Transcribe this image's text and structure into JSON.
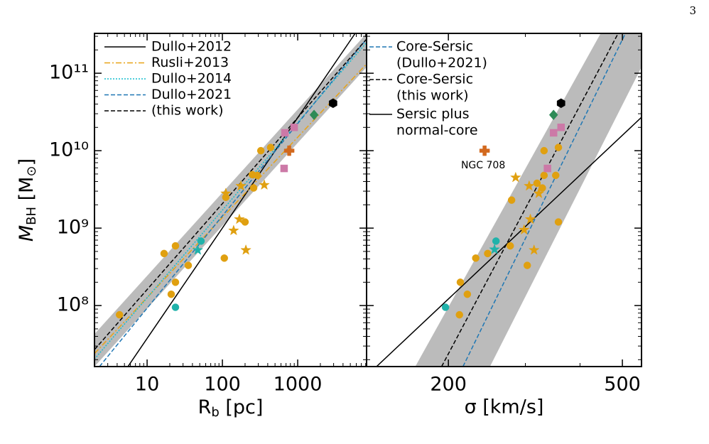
{
  "page_number": "3",
  "chart_data": [
    {
      "type": "scatter",
      "xscale": "log",
      "yscale": "log",
      "xlabel": [
        "R",
        "b",
        " [pc]"
      ],
      "ylabel": [
        "M",
        "BH",
        " [M",
        "⊙",
        "]"
      ],
      "xlim": [
        2,
        8220
      ],
      "ylim": [
        16300000,
        327000000000
      ],
      "xticks": [
        10,
        100,
        1000
      ],
      "yticks": [
        {
          "value": 100000000,
          "label": "10⁸"
        },
        {
          "value": 1000000000,
          "label": "10⁹"
        },
        {
          "value": 10000000000,
          "label": "10¹⁰"
        },
        {
          "value": 100000000000,
          "label": "10¹¹"
        }
      ],
      "band": {
        "color": "#bbbbbb",
        "x": [
          2,
          8220,
          8220,
          2
        ],
        "values": [
          43000000,
          327000000000,
          120000000000,
          16300000
        ]
      },
      "lines": [
        {
          "name": "Dullo+2012",
          "color": "#000000",
          "style": "solid",
          "x": [
            5.56,
            5800
          ],
          "values": [
            16300000,
            327000000000
          ]
        },
        {
          "name": "Rusli+2013",
          "color": "#e8a317",
          "style": "dashdot",
          "x": [
            2,
            8220
          ],
          "values": [
            24000000,
            132000000000
          ]
        },
        {
          "name": "Dullo+2014",
          "color": "#17becf",
          "style": "dotted",
          "x": [
            2,
            8220
          ],
          "values": [
            20400000,
            250000000000
          ]
        },
        {
          "name": "Dullo+2021",
          "color": "#1f77b4",
          "style": "dashed",
          "x": [
            2.33,
            8220
          ],
          "values": [
            16300000,
            276000000000
          ]
        },
        {
          "name": "(this work)",
          "color": "#000000",
          "style": "dashed",
          "x": [
            2,
            8220
          ],
          "values": [
            27000000,
            276000000000
          ]
        }
      ],
      "series": [
        {
          "marker": "circle",
          "color": "#e0a010",
          "x": [
            4.3,
            16.8,
            23.8,
            20.9,
            23.8,
            35.2,
            106,
            111,
            200,
            250,
            290,
            324,
            437,
            260
          ],
          "values": [
            76000000,
            470000000,
            590000000,
            140000000,
            200000000,
            330000000,
            410000000,
            2500000000,
            1200000000,
            4900000000,
            4800000000,
            10000000000,
            11000000000,
            3300000000
          ]
        },
        {
          "marker": "star",
          "color": "#e0a010",
          "x": [
            111,
            141,
            176,
            168,
            205,
            360
          ],
          "values": [
            2800000000,
            930000000,
            3500000000,
            1300000000,
            520000000,
            3600000000
          ]
        },
        {
          "marker": "square",
          "color": "#cc79a7",
          "x": [
            676,
            897,
            660
          ],
          "values": [
            17000000000,
            20000000000,
            5900000000
          ]
        },
        {
          "marker": "plus",
          "color": "#d2691e",
          "x": [
            771
          ],
          "values": [
            10000000000
          ]
        },
        {
          "marker": "diamond",
          "color": "#2e8b57",
          "x": [
            1650
          ],
          "values": [
            29000000000
          ]
        },
        {
          "marker": "hexagon",
          "color": "#000000",
          "x": [
            2950
          ],
          "values": [
            41000000000
          ]
        },
        {
          "marker": "circle",
          "color": "#20b2aa",
          "x": [
            23.8,
            52
          ],
          "values": [
            95000000,
            680000000
          ]
        },
        {
          "marker": "star",
          "color": "#20b2aa",
          "x": [
            47
          ],
          "values": [
            520000000
          ]
        }
      ]
    },
    {
      "type": "scatter",
      "xscale": "log",
      "yscale": "log",
      "xlabel": "σ [km/s]",
      "annotation": "NGC 708",
      "xlim": [
        130,
        553
      ],
      "ylim": [
        16300000,
        327000000000
      ],
      "xticks": [
        200,
        500
      ],
      "yticks": [
        100000000,
        1000000000,
        10000000000,
        100000000000
      ],
      "band": {
        "color": "#bbbbbb",
        "x": [
          168,
          446,
          553,
          553,
          249
        ],
        "values": [
          16300000,
          327000000000,
          327000000000,
          120000000000,
          16300000
        ]
      },
      "lines": [
        {
          "name": [
            "Core-Sersic",
            "(Dullo+2021)"
          ],
          "color": "#1f77b4",
          "style": "dashed",
          "x": [
            216,
            508
          ],
          "values": [
            16300000,
            327000000000
          ]
        },
        {
          "name": [
            "Core-Sersic",
            "(this work)"
          ],
          "color": "#000000",
          "style": "dashed",
          "x": [
            193,
            489
          ],
          "values": [
            16300000,
            327000000000
          ]
        },
        {
          "name": [
            "Sersic plus",
            "normal-core"
          ],
          "color": "#000000",
          "style": "solid",
          "x": [
            137,
            553
          ],
          "values": [
            16300000,
            27000000000
          ]
        }
      ],
      "series": [
        {
          "marker": "circle",
          "color": "#e0a010",
          "x": [
            212,
            221,
            213,
            303,
            231,
            246,
            277,
            279,
            357,
            331,
            357,
            319,
            331,
            352,
            328
          ],
          "values": [
            76000000,
            140000000,
            200000000,
            330000000,
            410000000,
            470000000,
            590000000,
            2300000000,
            1200000000,
            10000000000,
            11000000000,
            3800000000,
            4800000000,
            4800000000,
            3300000000
          ]
        },
        {
          "marker": "star",
          "color": "#e0a010",
          "x": [
            285,
            306,
            298,
            308,
            314,
            322
          ],
          "values": [
            4500000000,
            3500000000,
            950000000,
            1300000000,
            520000000,
            2800000000
          ]
        },
        {
          "marker": "square",
          "color": "#cc79a7",
          "x": [
            348,
            362,
            337
          ],
          "values": [
            17000000000,
            20000000000,
            5900000000
          ]
        },
        {
          "marker": "plus",
          "color": "#d2691e",
          "x": [
            242
          ],
          "values": [
            10000000000
          ]
        },
        {
          "marker": "diamond",
          "color": "#2e8b57",
          "x": [
            348
          ],
          "values": [
            29000000000
          ]
        },
        {
          "marker": "hexagon",
          "color": "#000000",
          "x": [
            362
          ],
          "values": [
            41000000000
          ]
        },
        {
          "marker": "circle",
          "color": "#20b2aa",
          "x": [
            197,
            257
          ],
          "values": [
            95000000,
            680000000
          ]
        },
        {
          "marker": "star",
          "color": "#20b2aa",
          "x": [
            255
          ],
          "values": [
            530000000
          ]
        }
      ]
    }
  ]
}
